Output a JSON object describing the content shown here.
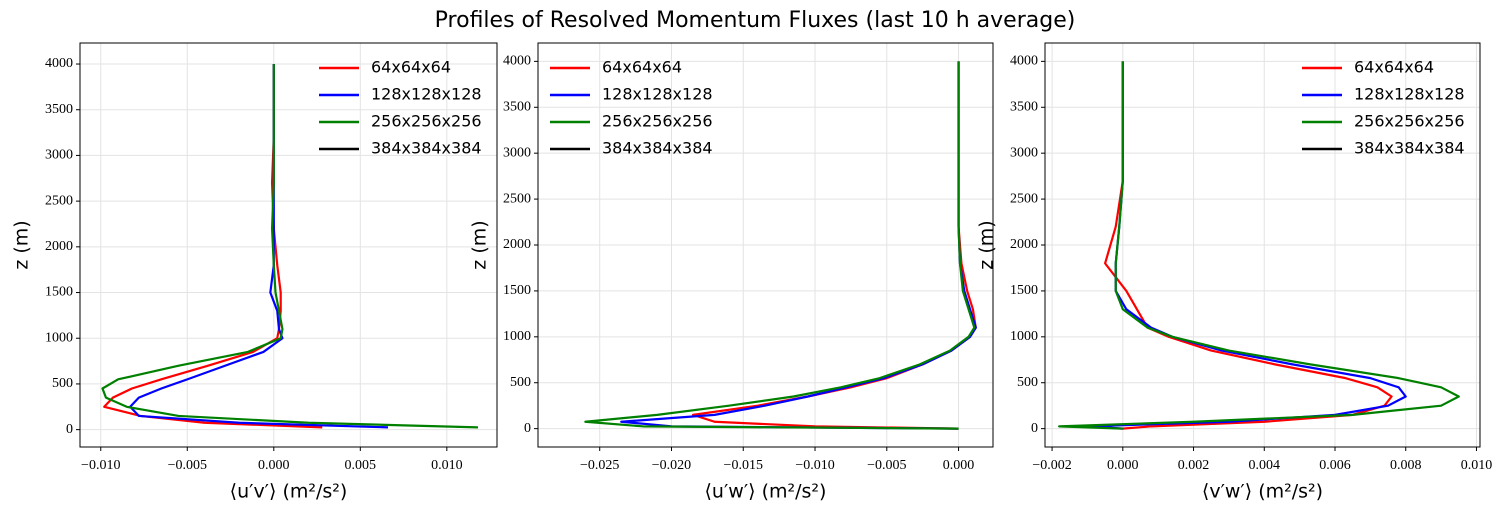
{
  "title": "Profiles of Resolved Momentum Fluxes (last 10 h average)",
  "chart_data": [
    {
      "type": "line",
      "xlabel": "⟨u′v′⟩ (m²/s²)",
      "ylabel": "z (m)",
      "legend": "upper right",
      "grid": true,
      "xlim": [
        -0.0112,
        0.0129
      ],
      "ylim": [
        -190,
        4230
      ],
      "xticks": [
        {
          "value": -0.01,
          "label": "−0.010"
        },
        {
          "value": -0.005,
          "label": "−0.005"
        },
        {
          "value": 0,
          "label": "0.000"
        },
        {
          "value": 0.005,
          "label": "0.005"
        },
        {
          "value": 0.01,
          "label": "0.010"
        }
      ],
      "yticks": [
        0,
        500,
        1000,
        1500,
        2000,
        2500,
        3000,
        3500,
        4000
      ],
      "y": [
        0,
        25,
        75,
        150,
        250,
        350,
        450,
        550,
        700,
        850,
        1000,
        1100,
        1300,
        1500,
        1800,
        2200,
        2700,
        3200,
        4000
      ],
      "series": [
        {
          "name": "64x64x64",
          "color": "#ff0000",
          "values": [
            null,
            0.0028,
            -0.004,
            -0.0077,
            -0.0098,
            -0.0093,
            -0.0082,
            -0.0065,
            -0.0038,
            -0.0012,
            0.0002,
            0.0003,
            0.0004,
            0.0004,
            0.0002,
            0.0,
            -0.0001,
            0.0,
            0.0
          ]
        },
        {
          "name": "128x128x128",
          "color": "#0000ff",
          "values": [
            null,
            0.0066,
            -0.002,
            -0.0078,
            -0.0083,
            -0.0078,
            -0.0065,
            -0.005,
            -0.0028,
            -0.0006,
            0.0005,
            0.0003,
            0.0002,
            -0.0002,
            0.0,
            0.0,
            0.0,
            0.0,
            0.0
          ]
        },
        {
          "name": "256x256x256",
          "color": "#008000",
          "values": [
            null,
            0.0118,
            0.002,
            -0.0055,
            -0.0085,
            -0.0097,
            -0.0099,
            -0.009,
            -0.0055,
            -0.0015,
            0.0004,
            0.0005,
            0.0003,
            0.0001,
            0.0,
            -0.0001,
            0.0,
            0.0,
            0.0
          ]
        },
        {
          "name": "384x384x384",
          "color": "#000000",
          "values": [
            null,
            null,
            null,
            null,
            null,
            null,
            null,
            null,
            null,
            null,
            null,
            null,
            null,
            null,
            null,
            null,
            null,
            null,
            null
          ]
        }
      ]
    },
    {
      "type": "line",
      "xlabel": "⟨u′w′⟩ (m²/s²)",
      "ylabel": "z (m)",
      "legend": "upper left",
      "grid": true,
      "xlim": [
        -0.0293,
        0.0024
      ],
      "ylim": [
        -200,
        4200
      ],
      "xticks": [
        {
          "value": -0.025,
          "label": "−0.025"
        },
        {
          "value": -0.02,
          "label": "−0.020"
        },
        {
          "value": -0.015,
          "label": "−0.015"
        },
        {
          "value": -0.01,
          "label": "−0.010"
        },
        {
          "value": -0.005,
          "label": "−0.005"
        },
        {
          "value": 0,
          "label": "0.000"
        }
      ],
      "yticks": [
        0,
        500,
        1000,
        1500,
        2000,
        2500,
        3000,
        3500,
        4000
      ],
      "y": [
        0,
        25,
        75,
        150,
        250,
        350,
        450,
        550,
        700,
        850,
        1000,
        1100,
        1300,
        1500,
        1800,
        2200,
        2700,
        3200,
        4000
      ],
      "series": [
        {
          "name": "64x64x64",
          "color": "#ff0000",
          "values": [
            0,
            -0.01,
            -0.017,
            -0.0185,
            -0.014,
            -0.0105,
            -0.0075,
            -0.005,
            -0.0025,
            -0.0005,
            0.0008,
            0.0012,
            0.001,
            0.0006,
            0.0002,
            0.0,
            0.0,
            0.0,
            0.0
          ]
        },
        {
          "name": "128x128x128",
          "color": "#0000ff",
          "values": [
            0,
            -0.02,
            -0.0235,
            -0.017,
            -0.0135,
            -0.0105,
            -0.0078,
            -0.0052,
            -0.0025,
            -0.0005,
            0.0008,
            0.0012,
            0.0008,
            0.0004,
            0.0001,
            0.0,
            0.0,
            0.0,
            0.0
          ]
        },
        {
          "name": "256x256x256",
          "color": "#008000",
          "values": [
            0,
            -0.022,
            -0.026,
            -0.021,
            -0.016,
            -0.0115,
            -0.0082,
            -0.0055,
            -0.0027,
            -0.0006,
            0.0007,
            0.0011,
            0.0007,
            0.0003,
            0.0001,
            0.0,
            0.0,
            0.0,
            0.0
          ]
        },
        {
          "name": "384x384x384",
          "color": "#000000",
          "values": [
            null,
            null,
            null,
            null,
            null,
            null,
            null,
            null,
            null,
            null,
            null,
            null,
            null,
            null,
            null,
            null,
            null,
            null,
            null
          ]
        }
      ]
    },
    {
      "type": "line",
      "xlabel": "⟨v′w′⟩ (m²/s²)",
      "ylabel": "z (m)",
      "legend": "upper right",
      "grid": true,
      "xlim": [
        -0.0022,
        0.0101
      ],
      "ylim": [
        -200,
        4200
      ],
      "xticks": [
        {
          "value": -0.002,
          "label": "−0.002"
        },
        {
          "value": 0,
          "label": "0.000"
        },
        {
          "value": 0.002,
          "label": "0.002"
        },
        {
          "value": 0.004,
          "label": "0.004"
        },
        {
          "value": 0.006,
          "label": "0.006"
        },
        {
          "value": 0.008,
          "label": "0.008"
        },
        {
          "value": 0.01,
          "label": "0.010"
        }
      ],
      "yticks": [
        0,
        500,
        1000,
        1500,
        2000,
        2500,
        3000,
        3500,
        4000
      ],
      "y": [
        0,
        25,
        75,
        150,
        250,
        350,
        450,
        550,
        700,
        850,
        1000,
        1100,
        1300,
        1500,
        1800,
        2200,
        2700,
        3200,
        4000
      ],
      "series": [
        {
          "name": "64x64x64",
          "color": "#ff0000",
          "values": [
            0,
            0.0008,
            0.004,
            0.0065,
            0.0074,
            0.0076,
            0.0072,
            0.0063,
            0.0043,
            0.0025,
            0.0013,
            0.0007,
            0.0004,
            0.0001,
            -0.0005,
            -0.0002,
            0.0,
            0.0,
            0.0
          ]
        },
        {
          "name": "128x128x128",
          "color": "#0000ff",
          "values": [
            0,
            -0.001,
            0.003,
            0.006,
            0.0075,
            0.008,
            0.0078,
            0.007,
            0.0048,
            0.0028,
            0.0014,
            0.0008,
            0.0001,
            -0.0002,
            -0.0002,
            -0.0001,
            0.0,
            0.0,
            0.0
          ]
        },
        {
          "name": "256x256x256",
          "color": "#008000",
          "values": [
            0,
            -0.0018,
            0.002,
            0.0065,
            0.009,
            0.0095,
            0.009,
            0.0078,
            0.0053,
            0.003,
            0.0014,
            0.0007,
            0.0,
            -0.0002,
            -0.0002,
            -0.0001,
            0.0,
            0.0,
            0.0
          ]
        },
        {
          "name": "384x384x384",
          "color": "#000000",
          "values": [
            null,
            null,
            null,
            null,
            null,
            null,
            null,
            null,
            null,
            null,
            null,
            null,
            null,
            null,
            null,
            null,
            null,
            null,
            null
          ]
        }
      ]
    }
  ]
}
